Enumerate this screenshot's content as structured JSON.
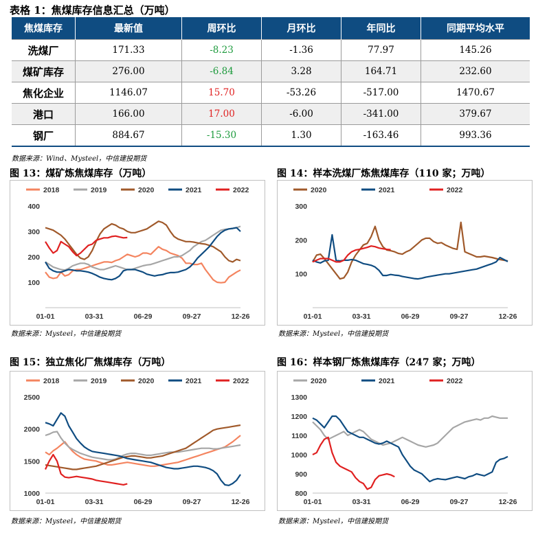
{
  "table": {
    "title": "表格 1：焦煤库存信息汇总（万吨）",
    "headers": [
      "焦煤库存",
      "最新值",
      "周环比",
      "月环比",
      "年同比",
      "同期平均水平"
    ],
    "rows": [
      {
        "name": "洗煤厂",
        "latest": "171.33",
        "wow": "-8.23",
        "mom": "-1.36",
        "yoy": "77.97",
        "avg": "145.26"
      },
      {
        "name": "煤矿库存",
        "latest": "276.00",
        "wow": "-6.84",
        "mom": "3.28",
        "yoy": "164.71",
        "avg": "232.60"
      },
      {
        "name": "焦化企业",
        "latest": "1146.07",
        "wow": "15.70",
        "mom": "-53.26",
        "yoy": "-517.00",
        "avg": "1470.67"
      },
      {
        "name": "港口",
        "latest": "166.00",
        "wow": "17.00",
        "mom": "-6.00",
        "yoy": "-341.00",
        "avg": "379.67"
      },
      {
        "name": "钢厂",
        "latest": "884.67",
        "wow": "-15.30",
        "mom": "1.30",
        "yoy": "-163.46",
        "avg": "993.36"
      }
    ],
    "source": "数据来源：Wind、Mysteel，中信建投期货"
  },
  "colors": {
    "header_bg": "#0f4c81",
    "up": "#e02020",
    "down": "#1c9a3c",
    "s2018": "#f4845f",
    "s2019": "#a6a6a6",
    "s2020": "#a0592a",
    "s2021": "#0f4c81",
    "s2022": "#e02020"
  },
  "chart_data": [
    {
      "id": "c13",
      "type": "line",
      "title": "图 13：煤矿炼焦煤库存（万吨）",
      "source": "数据来源：Mysteel，中信建投期货",
      "xticks": [
        "01-01",
        "03-31",
        "06-29",
        "09-27",
        "12-26"
      ],
      "ylim": [
        0,
        400
      ],
      "yticks": [
        100,
        200,
        300,
        400
      ],
      "series": [
        {
          "name": "2018",
          "color": "#f4845f",
          "values": [
            140,
            120,
            115,
            118,
            140,
            125,
            130,
            145,
            150,
            150,
            155,
            160,
            165,
            170,
            175,
            180,
            180,
            178,
            185,
            190,
            200,
            210,
            205,
            200,
            205,
            215,
            215,
            210,
            225,
            240,
            230,
            225,
            215,
            210,
            205,
            195,
            175,
            175,
            170,
            170,
            175,
            150,
            130,
            110,
            100,
            98,
            100,
            120,
            130,
            140,
            148
          ]
        },
        {
          "name": "2019",
          "color": "#a6a6a6",
          "values": [
            180,
            170,
            160,
            155,
            150,
            148,
            155,
            165,
            170,
            175,
            175,
            170,
            160,
            155,
            150,
            150,
            155,
            160,
            165,
            160,
            155,
            150,
            150,
            155,
            160,
            165,
            168,
            170,
            175,
            180,
            185,
            190,
            195,
            200,
            200,
            205,
            215,
            225,
            240,
            250,
            260,
            265,
            275,
            285,
            295,
            305,
            308,
            310,
            312,
            315,
            320
          ]
        },
        {
          "name": "2020",
          "color": "#a0592a",
          "values": [
            315,
            310,
            305,
            295,
            285,
            270,
            250,
            230,
            210,
            195,
            190,
            200,
            225,
            260,
            290,
            310,
            320,
            330,
            325,
            315,
            310,
            300,
            295,
            295,
            300,
            305,
            310,
            320,
            330,
            340,
            335,
            325,
            300,
            280,
            270,
            265,
            260,
            260,
            258,
            255,
            252,
            250,
            245,
            240,
            230,
            220,
            200,
            185,
            180,
            190,
            185
          ]
        },
        {
          "name": "2021",
          "color": "#0f4c81",
          "values": [
            180,
            155,
            145,
            140,
            140,
            145,
            150,
            148,
            145,
            145,
            143,
            140,
            135,
            128,
            120,
            115,
            112,
            110,
            115,
            125,
            145,
            150,
            150,
            150,
            145,
            140,
            132,
            128,
            125,
            128,
            130,
            135,
            138,
            138,
            140,
            145,
            150,
            160,
            175,
            195,
            210,
            225,
            240,
            260,
            280,
            295,
            305,
            310,
            312,
            315,
            300
          ]
        },
        {
          "name": "2022",
          "color": "#e02020",
          "values": [
            260,
            235,
            215,
            225,
            260,
            250,
            240,
            220,
            205,
            215,
            230,
            245,
            250,
            265,
            270,
            275,
            275,
            280,
            282,
            278,
            275,
            276
          ]
        }
      ]
    },
    {
      "id": "c14",
      "type": "line",
      "title": "图 14：样本洗煤厂炼焦煤库存（110 家；万吨）",
      "source": "数据来源：Mysteel，中信建投期货",
      "xticks": [
        "01-01",
        "03-31",
        "06-29",
        "09-27",
        "12-26"
      ],
      "ylim": [
        0,
        300
      ],
      "yticks": [
        100,
        200,
        300
      ],
      "series": [
        {
          "name": "2020",
          "color": "#a0592a",
          "values": [
            135,
            155,
            158,
            145,
            130,
            115,
            100,
            85,
            88,
            105,
            135,
            155,
            170,
            185,
            190,
            210,
            240,
            200,
            180,
            170,
            168,
            165,
            160,
            158,
            165,
            170,
            180,
            190,
            200,
            205,
            205,
            195,
            190,
            192,
            185,
            180,
            175,
            172,
            252,
            165,
            160,
            155,
            150,
            150,
            152,
            150,
            148,
            145,
            142,
            140,
            138
          ]
        },
        {
          "name": "2021",
          "color": "#0f4c81",
          "values": [
            140,
            135,
            132,
            138,
            140,
            215,
            140,
            138,
            140,
            140,
            142,
            140,
            135,
            130,
            128,
            125,
            120,
            110,
            95,
            95,
            98,
            96,
            95,
            92,
            90,
            88,
            86,
            85,
            87,
            90,
            92,
            94,
            96,
            98,
            100,
            100,
            102,
            104,
            106,
            108,
            110,
            112,
            114,
            118,
            122,
            126,
            130,
            135,
            148,
            142,
            136
          ]
        },
        {
          "name": "2022",
          "color": "#e02020",
          "values": [
            135,
            140,
            145,
            145,
            145,
            140,
            135,
            135,
            140,
            155,
            165,
            170,
            172,
            175,
            178,
            182,
            180,
            176,
            174,
            172,
            171
          ]
        }
      ]
    },
    {
      "id": "c15",
      "type": "line",
      "title": "图 15：独立焦化厂焦煤库存（万吨）",
      "source": "数据来源：Mysteel，中信建投期货",
      "xticks": [
        "01-01",
        "03-31",
        "06-29",
        "09-27",
        "12-26"
      ],
      "ylim": [
        1000,
        2500
      ],
      "yticks": [
        1000,
        1500,
        2000,
        2500
      ],
      "series": [
        {
          "name": "2018",
          "color": "#f4845f",
          "values": [
            1640,
            1600,
            1660,
            1700,
            1750,
            1800,
            1720,
            1650,
            1600,
            1560,
            1530,
            1520,
            1510,
            1500,
            1480,
            1460,
            1440,
            1440,
            1450,
            1460,
            1470,
            1480,
            1470,
            1460,
            1450,
            1440,
            1430,
            1420,
            1420,
            1430,
            1440,
            1450,
            1460,
            1470,
            1480,
            1500,
            1520,
            1540,
            1560,
            1580,
            1600,
            1620,
            1640,
            1660,
            1680,
            1700,
            1720,
            1760,
            1800,
            1850,
            1900
          ]
        },
        {
          "name": "2019",
          "color": "#a6a6a6",
          "values": [
            1900,
            1920,
            1950,
            1960,
            1860,
            1780,
            1720,
            1680,
            1650,
            1620,
            1600,
            1580,
            1560,
            1550,
            1540,
            1530,
            1520,
            1520,
            1530,
            1560,
            1590,
            1610,
            1620,
            1620,
            1610,
            1600,
            1590,
            1590,
            1600,
            1610,
            1620,
            1630,
            1640,
            1640,
            1640,
            1650,
            1660,
            1670,
            1680,
            1690,
            1700,
            1700,
            1700,
            1690,
            1690,
            1700,
            1710,
            1720,
            1730,
            1740,
            1750
          ]
        },
        {
          "name": "2020",
          "color": "#a0592a",
          "values": [
            1440,
            1430,
            1420,
            1410,
            1400,
            1390,
            1380,
            1370,
            1370,
            1380,
            1390,
            1400,
            1410,
            1420,
            1440,
            1460,
            1480,
            1500,
            1520,
            1540,
            1560,
            1570,
            1580,
            1580,
            1570,
            1560,
            1550,
            1550,
            1560,
            1570,
            1580,
            1600,
            1620,
            1640,
            1660,
            1680,
            1700,
            1740,
            1780,
            1820,
            1860,
            1900,
            1940,
            1980,
            2000,
            2010,
            2020,
            2030,
            2040,
            2050,
            2060
          ]
        },
        {
          "name": "2021",
          "color": "#0f4c81",
          "values": [
            2100,
            2080,
            2050,
            2150,
            2250,
            2200,
            2050,
            1950,
            1850,
            1780,
            1720,
            1680,
            1650,
            1640,
            1630,
            1620,
            1610,
            1600,
            1590,
            1580,
            1560,
            1540,
            1530,
            1520,
            1510,
            1500,
            1490,
            1480,
            1460,
            1440,
            1420,
            1400,
            1390,
            1380,
            1380,
            1390,
            1400,
            1410,
            1420,
            1420,
            1410,
            1400,
            1380,
            1350,
            1300,
            1200,
            1130,
            1120,
            1150,
            1200,
            1290
          ]
        },
        {
          "name": "2022",
          "color": "#e02020",
          "values": [
            1370,
            1500,
            1600,
            1500,
            1300,
            1250,
            1240,
            1250,
            1260,
            1250,
            1240,
            1230,
            1220,
            1200,
            1190,
            1180,
            1170,
            1160,
            1150,
            1140,
            1130,
            1146
          ]
        }
      ]
    },
    {
      "id": "c16",
      "type": "line",
      "title": "图 16：样本钢厂炼焦煤库存（247 家；万吨）",
      "source": "数据来源：Mysteel，中信建投期货",
      "xticks": [
        "01-01",
        "03-31",
        "06-29",
        "09-27",
        "12-26"
      ],
      "ylim": [
        800,
        1300
      ],
      "yticks": [
        800,
        900,
        1000,
        1100,
        1200,
        1300
      ],
      "series": [
        {
          "name": "2020",
          "color": "#a6a6a6",
          "values": [
            1170,
            1150,
            1130,
            1100,
            1080,
            1090,
            1100,
            1110,
            1120,
            1100,
            1110,
            1120,
            1130,
            1120,
            1100,
            1080,
            1070,
            1060,
            1050,
            1055,
            1060,
            1070,
            1080,
            1090,
            1080,
            1070,
            1060,
            1050,
            1045,
            1040,
            1045,
            1050,
            1060,
            1080,
            1100,
            1120,
            1140,
            1150,
            1160,
            1170,
            1175,
            1180,
            1185,
            1180,
            1190,
            1190,
            1200,
            1195,
            1190,
            1190,
            1190
          ]
        },
        {
          "name": "2021",
          "color": "#0f4c81",
          "values": [
            1190,
            1180,
            1160,
            1140,
            1170,
            1200,
            1200,
            1180,
            1150,
            1120,
            1110,
            1100,
            1090,
            1090,
            1080,
            1070,
            1060,
            1055,
            1060,
            1070,
            1060,
            1050,
            1040,
            1000,
            970,
            940,
            920,
            910,
            900,
            880,
            860,
            870,
            875,
            872,
            870,
            875,
            880,
            885,
            880,
            875,
            885,
            890,
            900,
            895,
            890,
            900,
            910,
            960,
            975,
            980,
            990
          ]
        },
        {
          "name": "2022",
          "color": "#e02020",
          "values": [
            1000,
            1010,
            1050,
            1080,
            1090,
            1010,
            960,
            940,
            930,
            920,
            910,
            880,
            860,
            850,
            820,
            830,
            870,
            890,
            895,
            900,
            895,
            885
          ]
        }
      ]
    }
  ]
}
